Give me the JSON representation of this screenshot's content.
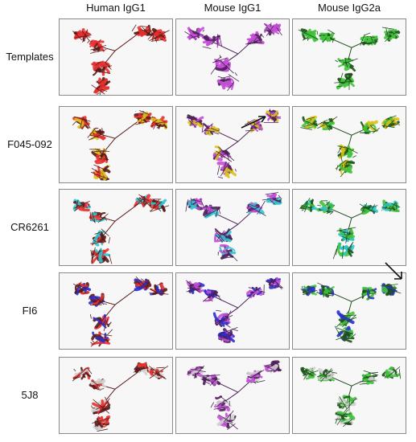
{
  "columns": [
    {
      "label": "Human IgG1",
      "color": "#e8302e",
      "dark": "#5a1a1a"
    },
    {
      "label": "Mouse IgG1",
      "color": "#c34ed6",
      "dark": "#4a1f55"
    },
    {
      "label": "Mouse IgG2a",
      "color": "#3fc23a",
      "dark": "#1e4f1c"
    }
  ],
  "rows": [
    {
      "label": "Templates",
      "overlay": null
    },
    {
      "label": "F045-092",
      "overlay": "#d8c21a"
    },
    {
      "label": "CR6261",
      "overlay": "#2cc6d0"
    },
    {
      "label": "FI6",
      "overlay": "#2a2fd0"
    },
    {
      "label": "5J8",
      "overlay": "#cfcfcf"
    }
  ],
  "annotations": [
    {
      "type": "arrow",
      "row": 1,
      "col": 1,
      "direction": "points-right"
    },
    {
      "type": "arrow",
      "row": 3,
      "col": 2,
      "direction": "points-down-right"
    }
  ]
}
